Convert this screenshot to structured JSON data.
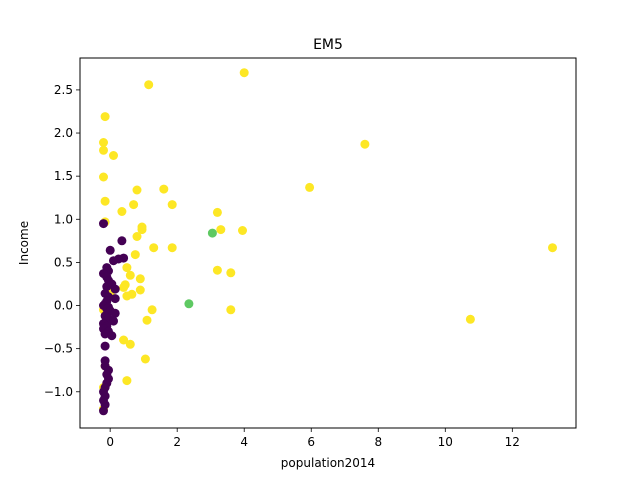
{
  "chart_data": {
    "type": "scatter",
    "title": "EM5",
    "xlabel": "population2014",
    "ylabel": "Income",
    "xlim": [
      -0.9,
      13.9
    ],
    "ylim": [
      -1.42,
      2.87
    ],
    "xticks": [
      0,
      2,
      4,
      6,
      8,
      10,
      12
    ],
    "yticks": [
      -1.0,
      -0.5,
      0.0,
      0.5,
      1.0,
      1.5,
      2.0,
      2.5
    ],
    "xtick_labels": [
      "0",
      "2",
      "4",
      "6",
      "8",
      "10",
      "12"
    ],
    "ytick_labels": [
      "−1.0",
      "−0.5",
      "0.0",
      "0.5",
      "1.0",
      "1.5",
      "2.0",
      "2.5"
    ],
    "grid": false,
    "legend": "none",
    "colors": {
      "purple": "#440154",
      "green": "#5ec962",
      "yellow": "#fde725"
    },
    "points": [
      {
        "x": 4.0,
        "y": 2.7,
        "c": "yellow"
      },
      {
        "x": 1.15,
        "y": 2.56,
        "c": "yellow"
      },
      {
        "x": -0.15,
        "y": 2.19,
        "c": "yellow"
      },
      {
        "x": -0.2,
        "y": 1.89,
        "c": "yellow"
      },
      {
        "x": 7.6,
        "y": 1.87,
        "c": "yellow"
      },
      {
        "x": -0.2,
        "y": 1.8,
        "c": "yellow"
      },
      {
        "x": 0.1,
        "y": 1.74,
        "c": "yellow"
      },
      {
        "x": -0.2,
        "y": 1.49,
        "c": "yellow"
      },
      {
        "x": 5.95,
        "y": 1.37,
        "c": "yellow"
      },
      {
        "x": 1.6,
        "y": 1.35,
        "c": "yellow"
      },
      {
        "x": 0.8,
        "y": 1.34,
        "c": "yellow"
      },
      {
        "x": -0.15,
        "y": 1.21,
        "c": "yellow"
      },
      {
        "x": 0.7,
        "y": 1.17,
        "c": "yellow"
      },
      {
        "x": 1.85,
        "y": 1.17,
        "c": "yellow"
      },
      {
        "x": 0.35,
        "y": 1.09,
        "c": "yellow"
      },
      {
        "x": 3.2,
        "y": 1.08,
        "c": "yellow"
      },
      {
        "x": -0.15,
        "y": 0.97,
        "c": "yellow"
      },
      {
        "x": 0.95,
        "y": 0.91,
        "c": "yellow"
      },
      {
        "x": 0.95,
        "y": 0.88,
        "c": "yellow"
      },
      {
        "x": 3.3,
        "y": 0.88,
        "c": "yellow"
      },
      {
        "x": 3.95,
        "y": 0.87,
        "c": "yellow"
      },
      {
        "x": 0.8,
        "y": 0.8,
        "c": "yellow"
      },
      {
        "x": 1.3,
        "y": 0.67,
        "c": "yellow"
      },
      {
        "x": 1.85,
        "y": 0.67,
        "c": "yellow"
      },
      {
        "x": 13.2,
        "y": 0.67,
        "c": "yellow"
      },
      {
        "x": 0.75,
        "y": 0.59,
        "c": "yellow"
      },
      {
        "x": 0.5,
        "y": 0.44,
        "c": "yellow"
      },
      {
        "x": 3.2,
        "y": 0.41,
        "c": "yellow"
      },
      {
        "x": 3.6,
        "y": 0.38,
        "c": "yellow"
      },
      {
        "x": 0.6,
        "y": 0.35,
        "c": "yellow"
      },
      {
        "x": 0.9,
        "y": 0.31,
        "c": "yellow"
      },
      {
        "x": 0.45,
        "y": 0.24,
        "c": "yellow"
      },
      {
        "x": 0.4,
        "y": 0.21,
        "c": "yellow"
      },
      {
        "x": 0.9,
        "y": 0.18,
        "c": "yellow"
      },
      {
        "x": 0.65,
        "y": 0.13,
        "c": "yellow"
      },
      {
        "x": 0.5,
        "y": 0.11,
        "c": "yellow"
      },
      {
        "x": -0.05,
        "y": 0.16,
        "c": "yellow"
      },
      {
        "x": 0.0,
        "y": 0.13,
        "c": "yellow"
      },
      {
        "x": 1.25,
        "y": -0.05,
        "c": "yellow"
      },
      {
        "x": 3.6,
        "y": -0.05,
        "c": "yellow"
      },
      {
        "x": -0.2,
        "y": -0.05,
        "c": "yellow"
      },
      {
        "x": 1.1,
        "y": -0.17,
        "c": "yellow"
      },
      {
        "x": 10.75,
        "y": -0.16,
        "c": "yellow"
      },
      {
        "x": 0.4,
        "y": -0.4,
        "c": "yellow"
      },
      {
        "x": 0.6,
        "y": -0.45,
        "c": "yellow"
      },
      {
        "x": 1.05,
        "y": -0.62,
        "c": "yellow"
      },
      {
        "x": -0.15,
        "y": -0.7,
        "c": "yellow"
      },
      {
        "x": 0.5,
        "y": -0.87,
        "c": "yellow"
      },
      {
        "x": -0.2,
        "y": -0.95,
        "c": "yellow"
      },
      {
        "x": -0.2,
        "y": -1.2,
        "c": "yellow"
      },
      {
        "x": 3.05,
        "y": 0.84,
        "c": "green"
      },
      {
        "x": 2.35,
        "y": 0.02,
        "c": "green"
      },
      {
        "x": -0.2,
        "y": 0.95,
        "c": "purple"
      },
      {
        "x": 0.35,
        "y": 0.75,
        "c": "purple"
      },
      {
        "x": 0.0,
        "y": 0.64,
        "c": "purple"
      },
      {
        "x": 0.4,
        "y": 0.55,
        "c": "purple"
      },
      {
        "x": 0.25,
        "y": 0.54,
        "c": "purple"
      },
      {
        "x": 0.1,
        "y": 0.52,
        "c": "purple"
      },
      {
        "x": -0.1,
        "y": 0.44,
        "c": "purple"
      },
      {
        "x": -0.05,
        "y": 0.4,
        "c": "purple"
      },
      {
        "x": -0.2,
        "y": 0.37,
        "c": "purple"
      },
      {
        "x": -0.1,
        "y": 0.33,
        "c": "purple"
      },
      {
        "x": -0.05,
        "y": 0.29,
        "c": "purple"
      },
      {
        "x": 0.05,
        "y": 0.25,
        "c": "purple"
      },
      {
        "x": -0.1,
        "y": 0.22,
        "c": "purple"
      },
      {
        "x": 0.15,
        "y": 0.19,
        "c": "purple"
      },
      {
        "x": -0.15,
        "y": 0.14,
        "c": "purple"
      },
      {
        "x": -0.05,
        "y": 0.1,
        "c": "purple"
      },
      {
        "x": 0.15,
        "y": 0.08,
        "c": "purple"
      },
      {
        "x": -0.1,
        "y": 0.05,
        "c": "purple"
      },
      {
        "x": -0.15,
        "y": 0.02,
        "c": "purple"
      },
      {
        "x": -0.2,
        "y": 0.0,
        "c": "purple"
      },
      {
        "x": -0.05,
        "y": -0.02,
        "c": "purple"
      },
      {
        "x": -0.1,
        "y": -0.04,
        "c": "purple"
      },
      {
        "x": 0.0,
        "y": -0.06,
        "c": "purple"
      },
      {
        "x": 0.15,
        "y": -0.09,
        "c": "purple"
      },
      {
        "x": -0.15,
        "y": -0.12,
        "c": "purple"
      },
      {
        "x": -0.05,
        "y": -0.15,
        "c": "purple"
      },
      {
        "x": 0.1,
        "y": -0.18,
        "c": "purple"
      },
      {
        "x": -0.2,
        "y": -0.21,
        "c": "purple"
      },
      {
        "x": -0.1,
        "y": -0.24,
        "c": "purple"
      },
      {
        "x": -0.2,
        "y": -0.27,
        "c": "purple"
      },
      {
        "x": -0.05,
        "y": -0.3,
        "c": "purple"
      },
      {
        "x": -0.15,
        "y": -0.33,
        "c": "purple"
      },
      {
        "x": 0.05,
        "y": -0.35,
        "c": "purple"
      },
      {
        "x": -0.15,
        "y": -0.47,
        "c": "purple"
      },
      {
        "x": -0.15,
        "y": -0.64,
        "c": "purple"
      },
      {
        "x": -0.15,
        "y": -0.7,
        "c": "purple"
      },
      {
        "x": -0.05,
        "y": -0.75,
        "c": "purple"
      },
      {
        "x": -0.1,
        "y": -0.8,
        "c": "purple"
      },
      {
        "x": -0.05,
        "y": -0.85,
        "c": "purple"
      },
      {
        "x": -0.1,
        "y": -0.9,
        "c": "purple"
      },
      {
        "x": -0.15,
        "y": -0.95,
        "c": "purple"
      },
      {
        "x": -0.2,
        "y": -1.0,
        "c": "purple"
      },
      {
        "x": -0.15,
        "y": -1.05,
        "c": "purple"
      },
      {
        "x": -0.2,
        "y": -1.1,
        "c": "purple"
      },
      {
        "x": -0.15,
        "y": -1.15,
        "c": "purple"
      },
      {
        "x": -0.2,
        "y": -1.22,
        "c": "purple"
      }
    ]
  }
}
